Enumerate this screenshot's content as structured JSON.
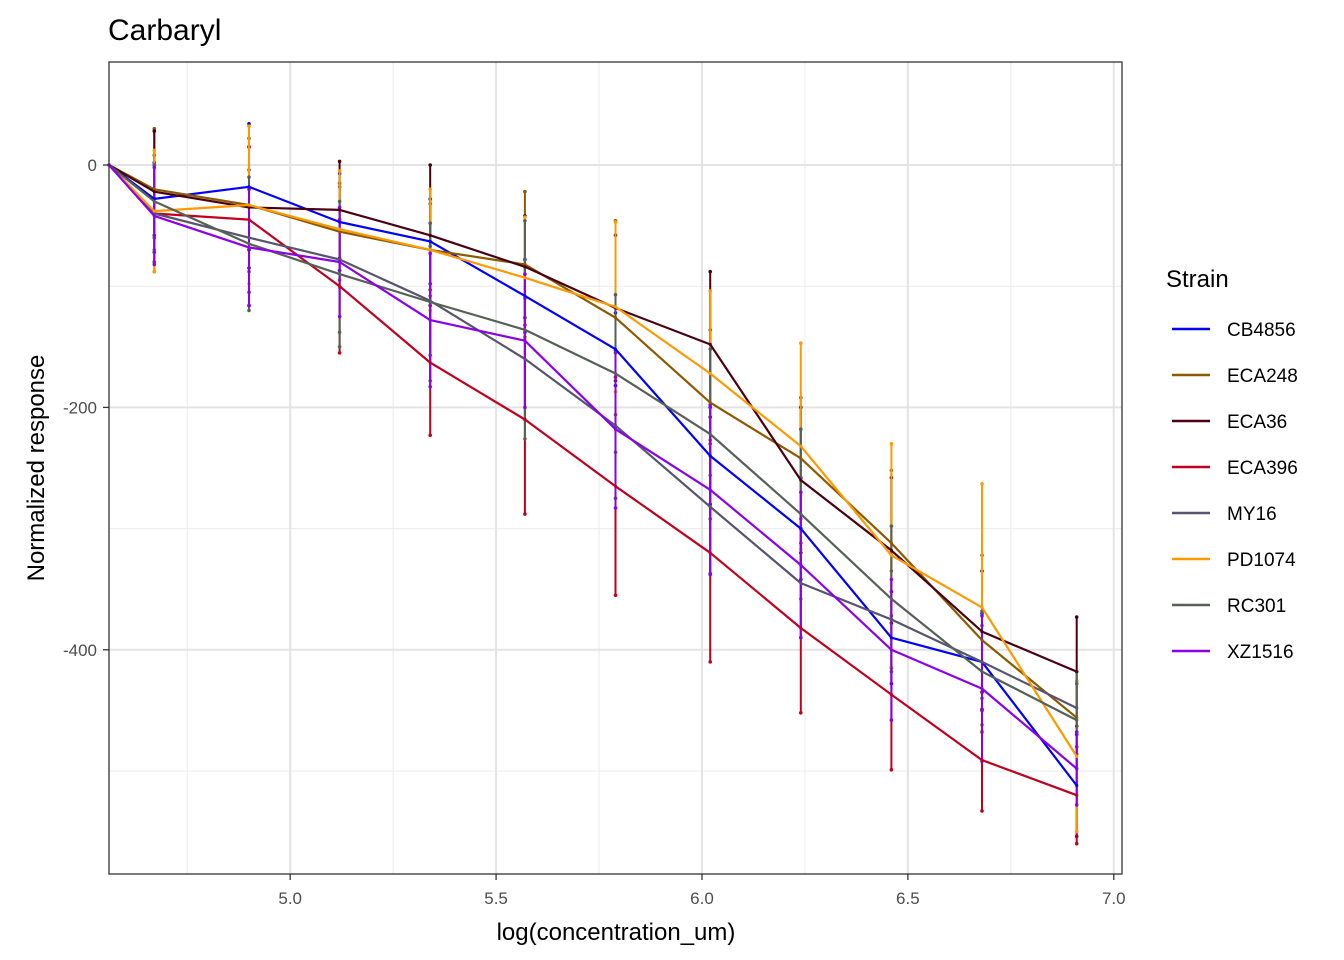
{
  "chart_data": {
    "type": "line",
    "title": "Carbaryl",
    "xlabel": "log(concentration_um)",
    "ylabel": "Normalized response",
    "xlim": [
      4.56,
      7.02
    ],
    "ylim": [
      -585,
      85
    ],
    "x_ticks": [
      5.0,
      5.5,
      6.0,
      6.5,
      7.0
    ],
    "x_tick_labels": [
      "5.0",
      "5.5",
      "6.0",
      "6.5",
      "7.0"
    ],
    "y_ticks": [
      0,
      -200,
      -400
    ],
    "y_tick_labels": [
      "0",
      "-200",
      "-400"
    ],
    "grid": true,
    "legend": {
      "title": "Strain",
      "position": "right"
    },
    "x": [
      4.56,
      4.67,
      4.9,
      5.12,
      5.34,
      5.57,
      5.79,
      6.02,
      6.24,
      6.46,
      6.68,
      6.91
    ],
    "series": [
      {
        "name": "CB4856",
        "color": "#0000ff",
        "values": [
          0,
          -28,
          -18,
          -47,
          -63,
          -108,
          -152,
          -240,
          -300,
          -390,
          -410,
          -512
        ],
        "error": [
          0,
          30,
          52,
          40,
          35,
          30,
          30,
          40,
          42,
          38,
          40,
          42
        ]
      },
      {
        "name": "ECA248",
        "color": "#8b5a00",
        "values": [
          0,
          -20,
          -33,
          -55,
          -70,
          -82,
          -126,
          -196,
          -242,
          -312,
          -392,
          -456
        ],
        "error": [
          0,
          50,
          55,
          40,
          38,
          60,
          80,
          60,
          50,
          60,
          70,
          30
        ]
      },
      {
        "name": "ECA36",
        "color": "#4a0012",
        "values": [
          0,
          -22,
          -35,
          -37,
          -58,
          -84,
          -118,
          -148,
          -260,
          -318,
          -385,
          -418
        ],
        "error": [
          0,
          50,
          50,
          40,
          58,
          42,
          60,
          60,
          60,
          60,
          50,
          45
        ]
      },
      {
        "name": "ECA396",
        "color": "#c0001f",
        "values": [
          0,
          -40,
          -45,
          -100,
          -163,
          -210,
          -265,
          -320,
          -382,
          -437,
          -491,
          -520
        ],
        "error": [
          0,
          40,
          60,
          55,
          60,
          78,
          90,
          90,
          70,
          62,
          42,
          40
        ]
      },
      {
        "name": "MY16",
        "color": "#58536e",
        "values": [
          0,
          -40,
          -60,
          -78,
          -112,
          -160,
          -215,
          -282,
          -345,
          -375,
          -410,
          -448
        ],
        "error": [
          0,
          48,
          56,
          60,
          45,
          50,
          60,
          55,
          45,
          40,
          30,
          20
        ]
      },
      {
        "name": "PD1074",
        "color": "#ff9900",
        "values": [
          0,
          -38,
          -33,
          -53,
          -70,
          -93,
          -117,
          -172,
          -232,
          -322,
          -365,
          -488
        ],
        "error": [
          0,
          50,
          65,
          48,
          50,
          50,
          70,
          68,
          85,
          92,
          102,
          62
        ]
      },
      {
        "name": "RC301",
        "color": "#566156",
        "values": [
          0,
          -30,
          -65,
          -90,
          -113,
          -136,
          -172,
          -222,
          -288,
          -358,
          -418,
          -458
        ],
        "error": [
          0,
          30,
          55,
          60,
          65,
          90,
          65,
          70,
          70,
          60,
          50,
          40
        ]
      },
      {
        "name": "XZ1516",
        "color": "#8b00e8",
        "values": [
          0,
          -42,
          -68,
          -80,
          -128,
          -145,
          -218,
          -268,
          -330,
          -400,
          -432,
          -498
        ],
        "error": [
          0,
          40,
          48,
          45,
          55,
          55,
          65,
          70,
          60,
          58,
          60,
          30
        ]
      }
    ]
  }
}
